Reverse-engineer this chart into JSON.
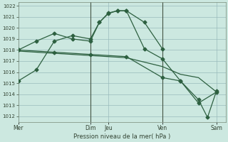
{
  "xlabel": "Pression niveau de la mer( hPa )",
  "bg_color": "#cce8e0",
  "grid_color": "#99bbbb",
  "line_color": "#2d6040",
  "vline_color": "#445544",
  "ylim": [
    1011.5,
    1022.3
  ],
  "yticks": [
    1012,
    1013,
    1014,
    1015,
    1016,
    1017,
    1018,
    1019,
    1020,
    1021,
    1022
  ],
  "xtick_labels": [
    "Mer",
    "Dim",
    "Jeu",
    "Ven",
    "Sam"
  ],
  "xtick_positions": [
    0,
    4,
    5,
    8,
    11
  ],
  "vline_positions": [
    4,
    8
  ],
  "xmin": 0,
  "xmax": 11.5,
  "line1_x": [
    0,
    1,
    2,
    3,
    4,
    4.5,
    5,
    5.5,
    6,
    7,
    8
  ],
  "line1_y": [
    1015.2,
    1016.2,
    1018.8,
    1019.3,
    1019.0,
    1020.5,
    1021.3,
    1021.55,
    1021.55,
    1020.5,
    1018.1
  ],
  "line2_x": [
    0,
    1,
    2,
    3,
    4,
    4.5,
    5,
    5.5,
    6,
    7,
    8,
    9,
    10,
    11
  ],
  "line2_y": [
    1018.0,
    1018.8,
    1019.5,
    1019.0,
    1018.8,
    1020.5,
    1021.35,
    1021.55,
    1021.55,
    1018.1,
    1017.2,
    1015.2,
    1013.2,
    1014.2
  ],
  "line3_x": [
    0,
    2,
    4,
    6,
    8,
    9,
    10,
    10.5,
    11
  ],
  "line3_y": [
    1018.0,
    1017.8,
    1017.6,
    1017.4,
    1015.5,
    1015.2,
    1013.5,
    1011.9,
    1014.3
  ],
  "line4_x": [
    0,
    2,
    4,
    6,
    8,
    9,
    10,
    11
  ],
  "line4_y": [
    1017.9,
    1017.7,
    1017.5,
    1017.3,
    1016.5,
    1015.8,
    1015.5,
    1014.2
  ]
}
